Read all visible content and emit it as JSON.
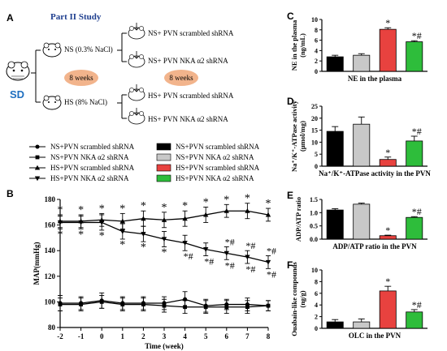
{
  "colors": {
    "black": "#000000",
    "gray": "#c8c8c8",
    "red": "#e8423f",
    "green": "#2ebd3b",
    "blue_title": "#1f3f8f",
    "sd_blue": "#1f6fc0",
    "weeks_fill": "#f2b48c",
    "asterisk": "#000000",
    "hash": "#000000"
  },
  "panelA": {
    "label": "A",
    "title": "Part II  Study",
    "sd_label": "SD",
    "ns_group": "NS (0.3% NaCl)",
    "hs_group": "HS (8% NaCl)",
    "duration1": "8 weeks",
    "duration2": "8 weeks",
    "sub_groups": [
      "NS+ PVN scrambled shRNA",
      "NS+ PVN NKA α2 shRNA",
      "HS+ PVN scrambled shRNA",
      "HS+ PVN NKA α2 shRNA"
    ]
  },
  "legend_lines": [
    {
      "label": "NS+PVN scrambled shRNA",
      "marker": "circle"
    },
    {
      "label": "NS+PVN NKA α2 shRNA",
      "marker": "square"
    },
    {
      "label": "HS+PVN scrambled shRNA",
      "marker": "triangle"
    },
    {
      "label": "HS+PVN NKA α2 shRNA",
      "marker": "triangle-down"
    }
  ],
  "legend_bars": [
    {
      "label": "NS+PVN scrambled shRNA",
      "color": "#000000"
    },
    {
      "label": "NS+PVN NKA α2 shRNA",
      "color": "#c8c8c8"
    },
    {
      "label": "HS+PVN scrambled shRNA",
      "color": "#e8423f"
    },
    {
      "label": "HS+PVN NKA α2 shRNA",
      "color": "#2ebd3b"
    }
  ],
  "chart_data": [
    {
      "panel": "B",
      "type": "line",
      "xlabel": "Time (week)",
      "ylabel": "MAP(mmHg)",
      "xlim": [
        -2,
        8
      ],
      "ylim": [
        80,
        180
      ],
      "yticks": [
        80,
        100,
        120,
        140,
        160,
        180
      ],
      "x": [
        -2,
        -1,
        0,
        1,
        2,
        3,
        4,
        5,
        6,
        7,
        8
      ],
      "series": [
        {
          "name": "NS+PVN scrambled shRNA",
          "marker": "circle",
          "values": [
            99,
            99,
            101,
            99,
            99,
            99,
            102,
            97,
            98,
            98,
            97
          ],
          "errors": [
            6,
            5,
            6,
            5,
            5,
            5,
            6,
            5,
            4,
            5,
            4
          ]
        },
        {
          "name": "NS+PVN NKA α2 shRNA",
          "marker": "square",
          "values": [
            98,
            98,
            100,
            98,
            98,
            97,
            96,
            96,
            96,
            96,
            97
          ],
          "errors": [
            5,
            5,
            5,
            5,
            5,
            5,
            5,
            5,
            5,
            5,
            4
          ]
        },
        {
          "name": "HS+PVN scrambled shRNA",
          "marker": "triangle",
          "values": [
            163,
            163,
            164,
            163,
            165,
            164,
            165,
            168,
            171,
            171,
            168
          ],
          "errors": [
            5,
            5,
            5,
            6,
            6,
            6,
            6,
            6,
            5,
            6,
            5
          ]
        },
        {
          "name": "HS+PVN NKA α2 shRNA",
          "marker": "triangle-down",
          "values": [
            162,
            162,
            162,
            155,
            153,
            149,
            146,
            141,
            138,
            135,
            131
          ],
          "errors": [
            5,
            5,
            6,
            6,
            6,
            6,
            6,
            5,
            5,
            5,
            5
          ]
        }
      ],
      "annotations": {
        "star_top": [
          -2,
          -1,
          0,
          1,
          2,
          3,
          4,
          5,
          6,
          7,
          8
        ],
        "star_bottom": [
          -2,
          -1,
          0,
          1,
          2,
          3
        ],
        "star_hash_bottom": [
          4,
          5,
          6,
          7,
          8
        ],
        "star_hash_upper": [
          6,
          7,
          8
        ]
      }
    },
    {
      "panel": "C",
      "type": "bar",
      "title": "NE in the plasma",
      "ylabel": "NE in the plasma\n(ng/mL)",
      "ylim": [
        0,
        10
      ],
      "yticks": [
        0,
        2,
        4,
        6,
        8,
        10
      ],
      "values": [
        2.8,
        3.1,
        8.1,
        5.7
      ],
      "errors": [
        0.3,
        0.3,
        0.3,
        0.2
      ],
      "marks": [
        "",
        "",
        "*",
        "*#"
      ]
    },
    {
      "panel": "D",
      "type": "bar",
      "title": "Na⁺/K⁺-ATPase activity in the PVN",
      "ylabel": "Na⁺/K⁺-ATPase activity\n(μmol/mg)",
      "ylim": [
        0,
        25
      ],
      "yticks": [
        0,
        5,
        10,
        15,
        20,
        25
      ],
      "values": [
        14.5,
        17.5,
        2.8,
        10.5
      ],
      "errors": [
        2.0,
        3.0,
        1.0,
        2.0
      ],
      "marks": [
        "",
        "",
        "*",
        "*#"
      ]
    },
    {
      "panel": "E",
      "type": "bar",
      "title": "ADP/ATP  ratio in the PVN",
      "ylabel": "ADP/ATP ratio",
      "ylim": [
        0,
        1.5
      ],
      "yticks": [
        0.0,
        0.5,
        1.0,
        1.5
      ],
      "values": [
        1.1,
        1.32,
        0.13,
        0.82
      ],
      "errors": [
        0.05,
        0.04,
        0.02,
        0.03
      ],
      "marks": [
        "",
        "",
        "*",
        "*#"
      ]
    },
    {
      "panel": "F",
      "type": "bar",
      "title": "OLC in the PVN",
      "ylabel": "Ouabain-like compounds\n(ng/g)",
      "ylim": [
        0,
        10
      ],
      "yticks": [
        0,
        2,
        4,
        6,
        8,
        10
      ],
      "values": [
        1.1,
        1.1,
        6.4,
        2.8
      ],
      "errors": [
        0.4,
        0.5,
        0.8,
        0.4
      ],
      "marks": [
        "",
        "",
        "*",
        "*#"
      ]
    }
  ]
}
